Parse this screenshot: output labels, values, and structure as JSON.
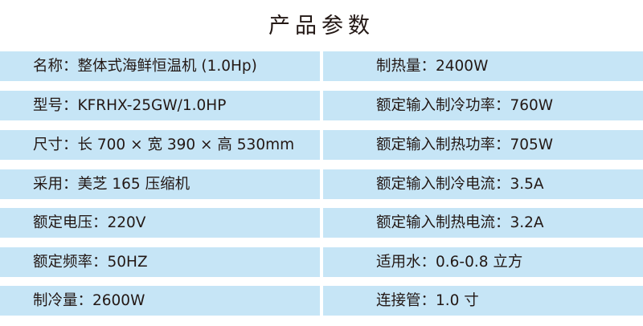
{
  "title": "产品参数",
  "rows": [
    {
      "left": "名称：整体式海鲜恒温机 (1.0Hp)",
      "right": "制热量：2400W"
    },
    {
      "left": "型号：KFRHX-25GW/1.0HP",
      "right": "额定输入制冷功率：760W"
    },
    {
      "left": "尺寸：长 700 × 宽 390 × 高 530mm",
      "right": "额定输入制热功率：705W"
    },
    {
      "left": "采用：美芝 165 压缩机",
      "right": "额定输入制冷电流：3.5A"
    },
    {
      "left": "额定电压：220V",
      "right": "额定输入制热电流：3.2A"
    },
    {
      "left": "额定频率：50HZ",
      "right": "适用水：0.6-0.8 立方"
    },
    {
      "left": "制冷量：2600W",
      "right": "连接管：1.0 寸"
    }
  ],
  "colors": {
    "row_background": "#c6e5f6",
    "text": "#231815"
  }
}
